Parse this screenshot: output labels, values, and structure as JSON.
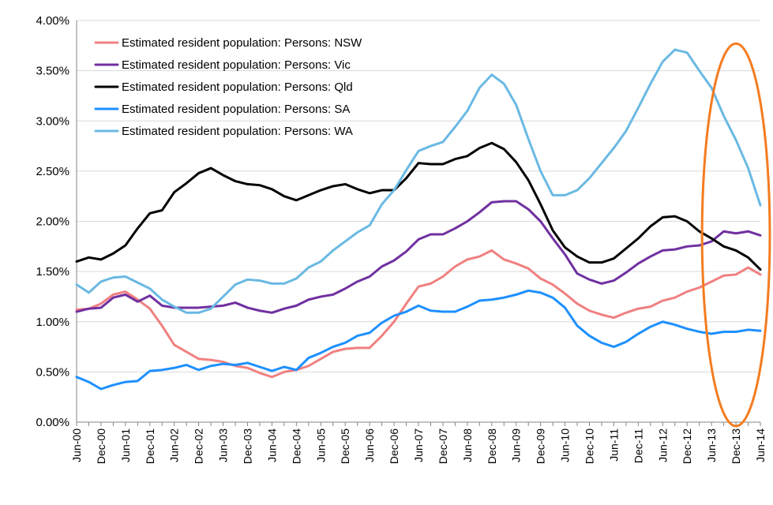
{
  "chart_data": {
    "type": "line",
    "title": "",
    "xlabel": "",
    "ylabel": "",
    "ylim": [
      0,
      4
    ],
    "ytick_labels": [
      "0.00%",
      "0.50%",
      "1.00%",
      "1.50%",
      "2.00%",
      "2.50%",
      "3.00%",
      "3.50%",
      "4.00%"
    ],
    "xtick_labels": [
      "Jun-00",
      "Dec-00",
      "Jun-01",
      "Dec-01",
      "Jun-02",
      "Dec-02",
      "Jun-03",
      "Dec-03",
      "Jun-04",
      "Dec-04",
      "Jun-05",
      "Dec-05",
      "Jun-06",
      "Dec-06",
      "Jun-07",
      "Dec-07",
      "Jun-08",
      "Dec-08",
      "Jun-09",
      "Dec-09",
      "Jun-10",
      "Dec-10",
      "Jun-11",
      "Dec-11",
      "Jun-12",
      "Dec-12",
      "Jun-13",
      "Dec-13",
      "Jun-14"
    ],
    "x": [
      "Jun-00",
      "Sep-00",
      "Dec-00",
      "Mar-01",
      "Jun-01",
      "Sep-01",
      "Dec-01",
      "Mar-02",
      "Jun-02",
      "Sep-02",
      "Dec-02",
      "Mar-03",
      "Jun-03",
      "Sep-03",
      "Dec-03",
      "Mar-04",
      "Jun-04",
      "Sep-04",
      "Dec-04",
      "Mar-05",
      "Jun-05",
      "Sep-05",
      "Dec-05",
      "Mar-06",
      "Jun-06",
      "Sep-06",
      "Dec-06",
      "Mar-07",
      "Jun-07",
      "Sep-07",
      "Dec-07",
      "Mar-08",
      "Jun-08",
      "Sep-08",
      "Dec-08",
      "Mar-09",
      "Jun-09",
      "Sep-09",
      "Dec-09",
      "Mar-10",
      "Jun-10",
      "Sep-10",
      "Dec-10",
      "Mar-11",
      "Jun-11",
      "Sep-11",
      "Dec-11",
      "Mar-12",
      "Jun-12",
      "Sep-12",
      "Dec-12",
      "Mar-13",
      "Jun-13",
      "Sep-13",
      "Dec-13",
      "Mar-14",
      "Jun-14"
    ],
    "grid": true,
    "legend_position": "top-left",
    "series": [
      {
        "name": "Estimated resident population: Persons: NSW",
        "color": "#f08080",
        "values": [
          1.12,
          1.13,
          1.18,
          1.27,
          1.3,
          1.22,
          1.13,
          0.96,
          0.77,
          0.7,
          0.63,
          0.62,
          0.6,
          0.56,
          0.54,
          0.49,
          0.45,
          0.5,
          0.52,
          0.56,
          0.63,
          0.7,
          0.73,
          0.74,
          0.74,
          0.86,
          1.0,
          1.18,
          1.35,
          1.38,
          1.45,
          1.55,
          1.62,
          1.65,
          1.71,
          1.62,
          1.58,
          1.53,
          1.43,
          1.37,
          1.28,
          1.18,
          1.11,
          1.07,
          1.04,
          1.09,
          1.13,
          1.15,
          1.21,
          1.24,
          1.3,
          1.34,
          1.4,
          1.46,
          1.47,
          1.54,
          1.47
        ]
      },
      {
        "name": "Estimated resident population: Persons: Vic",
        "color": "#7030a0",
        "values": [
          1.1,
          1.13,
          1.14,
          1.24,
          1.27,
          1.2,
          1.26,
          1.16,
          1.14,
          1.14,
          1.14,
          1.15,
          1.16,
          1.19,
          1.14,
          1.11,
          1.09,
          1.13,
          1.16,
          1.22,
          1.25,
          1.27,
          1.33,
          1.4,
          1.45,
          1.55,
          1.61,
          1.7,
          1.82,
          1.87,
          1.87,
          1.93,
          2.0,
          2.09,
          2.19,
          2.2,
          2.2,
          2.12,
          2.0,
          1.83,
          1.67,
          1.48,
          1.42,
          1.38,
          1.41,
          1.49,
          1.58,
          1.65,
          1.71,
          1.72,
          1.75,
          1.76,
          1.8,
          1.9,
          1.88,
          1.9,
          1.86
        ]
      },
      {
        "name": "Estimated resident population: Persons: Qld",
        "color": "#000000",
        "values": [
          1.6,
          1.64,
          1.62,
          1.68,
          1.76,
          1.93,
          2.08,
          2.11,
          2.29,
          2.38,
          2.48,
          2.53,
          2.46,
          2.4,
          2.37,
          2.36,
          2.32,
          2.25,
          2.21,
          2.26,
          2.31,
          2.35,
          2.37,
          2.32,
          2.28,
          2.31,
          2.31,
          2.43,
          2.58,
          2.57,
          2.57,
          2.62,
          2.65,
          2.73,
          2.78,
          2.72,
          2.59,
          2.41,
          2.17,
          1.91,
          1.74,
          1.65,
          1.59,
          1.59,
          1.63,
          1.73,
          1.83,
          1.95,
          2.04,
          2.05,
          2.0,
          1.9,
          1.83,
          1.75,
          1.71,
          1.64,
          1.52
        ]
      },
      {
        "name": "Estimated resident population: Persons: SA",
        "color": "#1e90ff",
        "values": [
          0.45,
          0.4,
          0.33,
          0.37,
          0.4,
          0.41,
          0.51,
          0.52,
          0.54,
          0.57,
          0.52,
          0.56,
          0.58,
          0.57,
          0.59,
          0.55,
          0.51,
          0.55,
          0.52,
          0.64,
          0.69,
          0.75,
          0.79,
          0.86,
          0.89,
          0.99,
          1.06,
          1.1,
          1.16,
          1.11,
          1.1,
          1.1,
          1.15,
          1.21,
          1.22,
          1.24,
          1.27,
          1.31,
          1.29,
          1.24,
          1.14,
          0.96,
          0.86,
          0.79,
          0.75,
          0.8,
          0.88,
          0.95,
          1.0,
          0.97,
          0.93,
          0.9,
          0.88,
          0.9,
          0.9,
          0.92,
          0.91
        ]
      },
      {
        "name": "Estimated resident population: Persons: WA",
        "color": "#6ab9e3",
        "values": [
          1.37,
          1.29,
          1.4,
          1.44,
          1.45,
          1.39,
          1.33,
          1.22,
          1.15,
          1.09,
          1.09,
          1.13,
          1.25,
          1.37,
          1.42,
          1.41,
          1.38,
          1.38,
          1.43,
          1.54,
          1.6,
          1.71,
          1.8,
          1.89,
          1.96,
          2.17,
          2.31,
          2.51,
          2.7,
          2.75,
          2.79,
          2.94,
          3.1,
          3.33,
          3.46,
          3.37,
          3.16,
          2.82,
          2.5,
          2.26,
          2.26,
          2.31,
          2.43,
          2.58,
          2.73,
          2.9,
          3.13,
          3.37,
          3.59,
          3.71,
          3.68,
          3.5,
          3.33,
          3.05,
          2.81,
          2.53,
          2.16
        ]
      }
    ],
    "annotations": [
      {
        "shape": "ellipse",
        "color": "#f47c20",
        "x_from": "Jun-13",
        "x_to": "Jun-14",
        "y_from": 0.0,
        "y_to": 3.77
      }
    ]
  }
}
